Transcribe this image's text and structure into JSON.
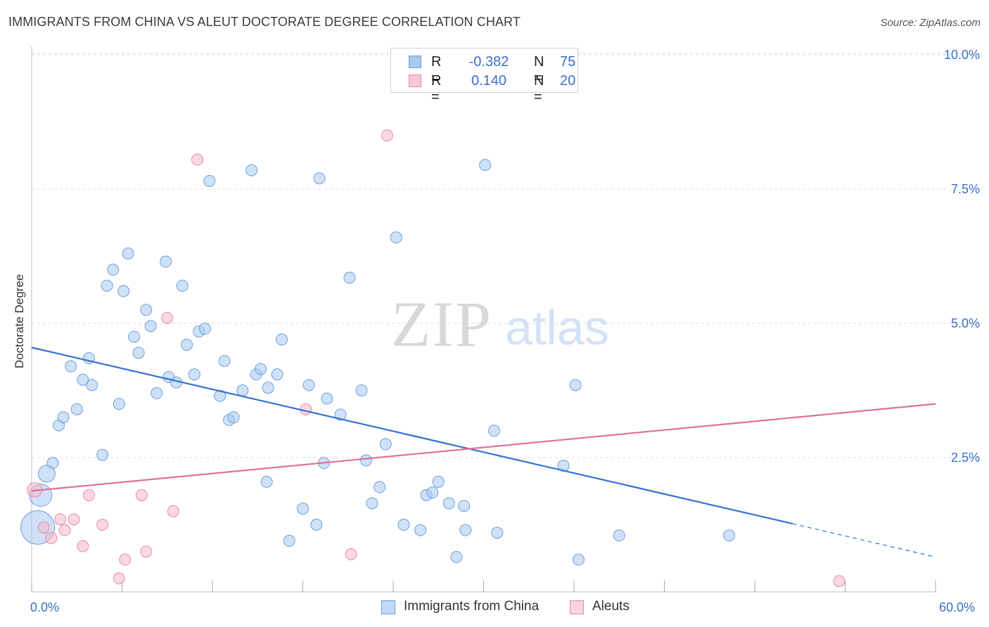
{
  "header": {
    "title": "IMMIGRANTS FROM CHINA VS ALEUT DOCTORATE DEGREE CORRELATION CHART",
    "source": "Source: ZipAtlas.com"
  },
  "watermark": {
    "zip": "ZIP",
    "atlas": "atlas"
  },
  "legend": {
    "r_label": "R =",
    "n_label": "N =",
    "rows": [
      {
        "r": "-0.382",
        "n": "75",
        "color": "#a8c8f0"
      },
      {
        "r": "0.140",
        "n": "20",
        "color": "#f5b8c8"
      }
    ]
  },
  "bottom_legend": [
    {
      "label": "Immigrants from China",
      "color": "#a8c8f0"
    },
    {
      "label": "Aleuts",
      "color": "#f5b8c8"
    }
  ],
  "colors": {
    "blue_fill": "#a8c8f0",
    "blue_stroke": "#6f9fdc",
    "blue_line": "#3273d4",
    "pink_fill": "#f5b8c8",
    "pink_stroke": "#e88aa6",
    "pink_line": "#e07098",
    "axis_text": "#3b6fc6",
    "grid": "#dddddd"
  },
  "chart_data": {
    "type": "scatter",
    "title": "IMMIGRANTS FROM CHINA VS ALEUT DOCTORATE DEGREE CORRELATION CHART",
    "xlabel": "",
    "ylabel": "Doctorate Degree",
    "xlim": [
      0,
      60
    ],
    "ylim": [
      0,
      10.4
    ],
    "x_tick_labels": [
      {
        "value": 0,
        "label": "0.0%"
      },
      {
        "value": 60,
        "label": "60.0%"
      }
    ],
    "y_tick_labels": [
      {
        "value": 2.5,
        "label": "2.5%"
      },
      {
        "value": 5.0,
        "label": "5.0%"
      },
      {
        "value": 7.5,
        "label": "7.5%"
      },
      {
        "value": 10.0,
        "label": "10.0%"
      }
    ],
    "x_minor_ticks": [
      0,
      6,
      12,
      18,
      24,
      30,
      36,
      42,
      48,
      54,
      60
    ],
    "series": [
      {
        "name": "Immigrants from China",
        "trend": {
          "x0": 0,
          "y0": 4.55,
          "x1": 50.5,
          "y1": 1.27,
          "dash_to_x": 60,
          "dash_to_y": 0.65
        },
        "points": [
          [
            0.4,
            1.2,
            3
          ],
          [
            0.6,
            1.8,
            2
          ],
          [
            1.0,
            2.2,
            1.5
          ],
          [
            1.4,
            2.4,
            1
          ],
          [
            1.8,
            3.1,
            1
          ],
          [
            2.1,
            3.25,
            1
          ],
          [
            2.6,
            4.2,
            1
          ],
          [
            3.0,
            3.4,
            1
          ],
          [
            3.4,
            3.95,
            1
          ],
          [
            3.8,
            4.35,
            1
          ],
          [
            4.0,
            3.85,
            1
          ],
          [
            4.7,
            2.55,
            1
          ],
          [
            5.0,
            5.7,
            1
          ],
          [
            5.4,
            6.0,
            1
          ],
          [
            5.8,
            3.5,
            1
          ],
          [
            6.1,
            5.6,
            1
          ],
          [
            6.4,
            6.3,
            1
          ],
          [
            6.8,
            4.75,
            1
          ],
          [
            7.1,
            4.45,
            1
          ],
          [
            7.6,
            5.25,
            1
          ],
          [
            7.9,
            4.95,
            1
          ],
          [
            8.3,
            3.7,
            1
          ],
          [
            8.9,
            6.15,
            1
          ],
          [
            9.1,
            4.0,
            1
          ],
          [
            9.6,
            3.9,
            1
          ],
          [
            10.0,
            5.7,
            1
          ],
          [
            10.3,
            4.6,
            1
          ],
          [
            10.8,
            4.05,
            1
          ],
          [
            11.1,
            4.85,
            1
          ],
          [
            11.5,
            4.9,
            1
          ],
          [
            11.8,
            7.65,
            1
          ],
          [
            12.5,
            3.65,
            1
          ],
          [
            12.8,
            4.3,
            1
          ],
          [
            13.1,
            3.2,
            1
          ],
          [
            13.4,
            3.25,
            1
          ],
          [
            14.0,
            3.75,
            1
          ],
          [
            14.6,
            7.85,
            1
          ],
          [
            14.9,
            4.05,
            1
          ],
          [
            15.2,
            4.15,
            1
          ],
          [
            15.7,
            3.8,
            1
          ],
          [
            15.6,
            2.05,
            1
          ],
          [
            16.3,
            4.05,
            1
          ],
          [
            16.6,
            4.7,
            1
          ],
          [
            17.1,
            0.95,
            1
          ],
          [
            18.0,
            1.55,
            1
          ],
          [
            18.4,
            3.85,
            1
          ],
          [
            18.9,
            1.25,
            1
          ],
          [
            19.1,
            7.7,
            1
          ],
          [
            19.4,
            2.4,
            1
          ],
          [
            19.6,
            3.6,
            1
          ],
          [
            20.5,
            3.3,
            1
          ],
          [
            21.1,
            5.85,
            1
          ],
          [
            21.9,
            3.75,
            1
          ],
          [
            22.2,
            2.45,
            1
          ],
          [
            22.6,
            1.65,
            1
          ],
          [
            23.1,
            1.95,
            1
          ],
          [
            23.5,
            2.75,
            1
          ],
          [
            24.2,
            6.6,
            1
          ],
          [
            24.7,
            1.25,
            1
          ],
          [
            25.8,
            1.15,
            1
          ],
          [
            26.2,
            1.8,
            1
          ],
          [
            26.6,
            1.85,
            1
          ],
          [
            27.0,
            2.05,
            1
          ],
          [
            27.7,
            1.65,
            1
          ],
          [
            28.2,
            0.65,
            1
          ],
          [
            28.7,
            1.6,
            1
          ],
          [
            28.8,
            1.15,
            1
          ],
          [
            30.1,
            7.95,
            1
          ],
          [
            30.7,
            3.0,
            1
          ],
          [
            30.9,
            1.1,
            1
          ],
          [
            35.3,
            2.35,
            1
          ],
          [
            36.1,
            3.85,
            1
          ],
          [
            36.3,
            0.6,
            1
          ],
          [
            39.0,
            1.05,
            1
          ],
          [
            46.3,
            1.05,
            1
          ]
        ]
      },
      {
        "name": "Aleuts",
        "trend": {
          "x0": 0,
          "y0": 1.88,
          "x1": 60,
          "y1": 3.5
        },
        "points": [
          [
            0.2,
            1.9,
            1.3
          ],
          [
            0.8,
            1.2,
            1
          ],
          [
            1.3,
            1.0,
            1
          ],
          [
            1.9,
            1.35,
            1
          ],
          [
            2.2,
            1.15,
            1
          ],
          [
            2.8,
            1.35,
            1
          ],
          [
            3.4,
            0.85,
            1
          ],
          [
            3.8,
            1.8,
            1
          ],
          [
            4.7,
            1.25,
            1
          ],
          [
            5.8,
            0.25,
            1
          ],
          [
            6.2,
            0.6,
            1
          ],
          [
            7.3,
            1.8,
            1
          ],
          [
            7.6,
            0.75,
            1
          ],
          [
            9.0,
            5.1,
            1
          ],
          [
            9.4,
            1.5,
            1
          ],
          [
            11.0,
            8.05,
            1
          ],
          [
            18.2,
            3.4,
            1
          ],
          [
            21.2,
            0.7,
            1
          ],
          [
            23.6,
            8.5,
            1
          ],
          [
            53.6,
            0.2,
            1
          ]
        ]
      }
    ]
  }
}
